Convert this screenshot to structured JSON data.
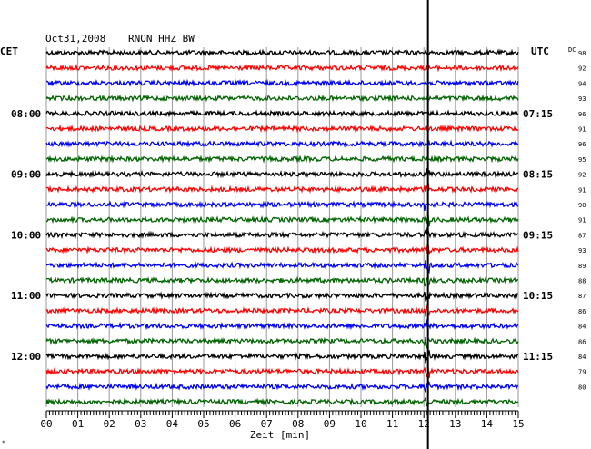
{
  "header": {
    "date": "Oct31,2008",
    "station": "RNON HHZ BW",
    "left_zone": "CET",
    "right_zone": "UTC",
    "dc_label": "DC"
  },
  "chart_data": {
    "type": "line",
    "title": "Oct31,2008  RNON HHZ BW",
    "xlabel": "Zeit [min]",
    "xlim": [
      0,
      15
    ],
    "x_ticks": [
      "00",
      "01",
      "02",
      "03",
      "04",
      "05",
      "06",
      "07",
      "08",
      "09",
      "10",
      "11",
      "12",
      "13",
      "14",
      "15"
    ],
    "trace_colors": [
      "#000000",
      "#ff0000",
      "#0000ff",
      "#006400"
    ],
    "rows": 24,
    "left_time_labels": [
      {
        "row": 4,
        "label": "08:00"
      },
      {
        "row": 8,
        "label": "09:00"
      },
      {
        "row": 12,
        "label": "10:00"
      },
      {
        "row": 16,
        "label": "11:00"
      },
      {
        "row": 20,
        "label": "12:00"
      }
    ],
    "right_time_labels": [
      {
        "row": 4,
        "label": "07:15"
      },
      {
        "row": 8,
        "label": "08:15"
      },
      {
        "row": 12,
        "label": "09:15"
      },
      {
        "row": 16,
        "label": "10:15"
      },
      {
        "row": 20,
        "label": "11:15"
      }
    ],
    "dc_values": [
      "98",
      "92",
      "94",
      "93",
      "96",
      "91",
      "96",
      "95",
      "92",
      "91",
      "90",
      "91",
      "87",
      "93",
      "89",
      "88",
      "87",
      "86",
      "84",
      "86",
      "84",
      "79",
      "80"
    ],
    "event_minute": 12.1
  }
}
